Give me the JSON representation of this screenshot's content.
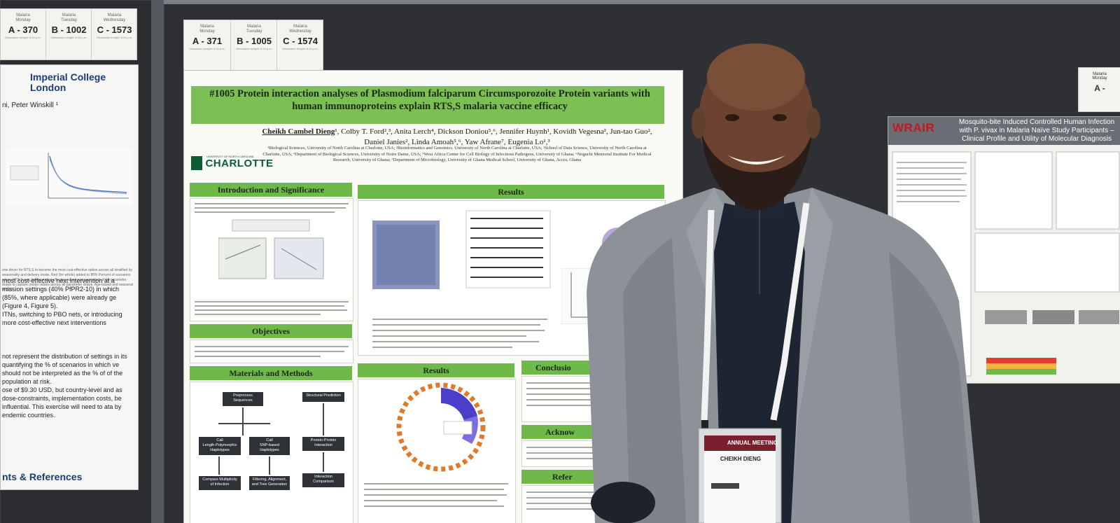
{
  "left_card": {
    "cells": [
      {
        "day": "Malaria\nMonday",
        "code": "A - 370",
        "note": "Discussion tonight: 6:15 p.m."
      },
      {
        "day": "Malaria\nTuesday",
        "code": "B - 1002",
        "note": "Discussion tonight: 6:15 p.m."
      },
      {
        "day": "Malaria\nWednesday",
        "code": "C - 1573",
        "note": "Discussion tonight: 6:15 p.m."
      }
    ]
  },
  "center_card": {
    "cells": [
      {
        "day": "Malaria\nMonday",
        "code": "A - 371",
        "note": "Discussion tonight: 6:15 p.m."
      },
      {
        "day": "Malaria\nTuesday",
        "code": "B - 1005",
        "note": "Discussion tonight: 6:15 p.m."
      },
      {
        "day": "Malaria\nWednesday",
        "code": "C - 1574",
        "note": "Discussion tonight: 6:15 p.m."
      }
    ]
  },
  "right_card": {
    "day": "Malaria\nMonday",
    "code": "A -"
  },
  "left_poster": {
    "logo": "Imperial College\nLondon",
    "authors": "ni, Peter Winskill ¹",
    "paragraph_small": "one driver for RTS,S to become the most cost-effective option across all stratified by seasonality and delivery mode. Red (for whole) added to 85% Percent of scenarios where RTS,S was the most cost-effective. alone represent each of 50 parameter draws to capture model values across all parameter draws. Age-based and seasonal RTS,S",
    "paragraph": "most cost-effective next intervention at a mission settings (40% PfPR2-10) in which (85%, where applicable) were already ge (Figure 4, Figure 5).\nITNs, switching to PBO nets, or introducing more cost-effective next interventions",
    "paragraph2": "not represent the distribution of settings in its quantifying the % of scenarios in which ve should not be interpreted as the % of of the population at risk.\nose of $9.30 USD, but country-level and as dose-constraints, implementation costs, be influential. This exercise will need to ata by endemic countries.",
    "heading": "nts & References"
  },
  "main_poster": {
    "title": "#1005 Protein interaction analyses of Plasmodium falciparum Circumsporozoite Protein variants with human immunoproteins explain RTS,S malaria vaccine efficacy",
    "authors_lead": "Cheikh Cambel Dieng",
    "authors_rest": "¹, Colby T. Ford²,³, Anita Lerch⁴, Dickson Doniou⁵,⁶, Jennifer Huynh¹, Kovidh Vegesna², Jun-tao Guo², Daniel Janies², Linda Amoah⁵,⁶, Yaw Afrane⁷, Eugenia Lo¹,³",
    "affiliations": "¹Biological Sciences, University of North Carolina at Charlotte, USA; ²Bioinformatics and Genomics, University of North Carolina at Charlotte, USA; ³School of Data Science, University of North Carolina at Charlotte, USA; ⁴Department of Biological Sciences, University of Notre Dame, USA; ⁵West Africa Center for Cell Biology of Infectious Pathogens, University of Ghana; ⁶Noguchi Memorial Institute For Medical Research, University of Ghana; ⁷Department of Microbiology, University of Ghana Medical School, University of Ghana, Accra, Ghana",
    "university": "CHARLOTTE",
    "university_tiny": "UNIVERSITY OF NORTH CAROLINA",
    "sections": {
      "intro": "Introduction and Significance",
      "results_top": "Results",
      "objectives": "Objectives",
      "methods": "Materials and Methods",
      "results_bottom": "Results",
      "conclusion": "Conclusio",
      "acknowledgements": "Acknow",
      "references": "Refer"
    },
    "flow_boxes": {
      "preprocess": "Preprocess\nSequences",
      "length_poly": "Call\nLength-Polymorphic\nHaplotypes",
      "snp_based": "Call\nSNP-based\nHaplotypes",
      "multiplicity": "Compare Multiplicity\nof Infection",
      "filtering": "Filtering, Alignment,\nand Tree Generation",
      "structural": "Structural Prediction",
      "protein_protein": "Protein-Protein\nInteraction",
      "interaction_cmp": "Interaction\nComparison"
    }
  },
  "right_poster": {
    "logo": "WRAIR",
    "title": "Mosquito-bite Induced Controlled Human Infection with P. vivax in Malaria Naïve Study Participants – Clinical Profile and Utility of Molecular Diagnosis"
  },
  "badge": {
    "event": "ANNUAL MEETING",
    "name": "CHEIKH DIENG"
  },
  "colors": {
    "poster_green": "#7cbf55",
    "uncc_green": "#0d5c34",
    "imperial_blue": "#1e3c78",
    "wrair_red": "#c7161c",
    "jacket": "#8d9198"
  }
}
